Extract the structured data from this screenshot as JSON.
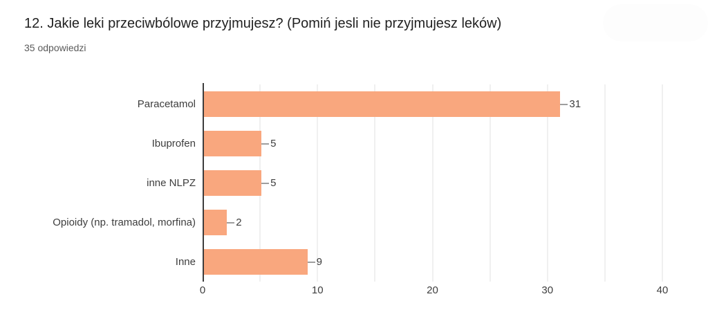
{
  "header": {
    "title": "12. Jakie leki przeciwbólowe przyjmujesz? (Pomiń jesli nie przyjmujesz leków)",
    "responses_count": "35 odpowiedzi"
  },
  "chart_data": {
    "type": "bar",
    "orientation": "horizontal",
    "categories": [
      "Paracetamol",
      "Ibuprofen",
      "inne NLPZ",
      "Opioidy (np. tramadol, morfina)",
      "Inne"
    ],
    "values": [
      31,
      5,
      5,
      2,
      9
    ],
    "value_labels": [
      "31",
      "5",
      "5",
      "2",
      "9"
    ],
    "xlim": [
      0,
      40
    ],
    "xticks": [
      0,
      10,
      20,
      30,
      40
    ],
    "gridline_step": 5,
    "grid": true,
    "legend": "none",
    "colors": {
      "bar": "#f9a77e",
      "axis": "#3c3c3c",
      "grid": "#f0f0f0",
      "category_label": "#3d3d3d",
      "value_label": "#3d3d3d",
      "connector": "#9e9e9e",
      "title": "#212121",
      "subtitle": "#5a5a5a"
    }
  }
}
